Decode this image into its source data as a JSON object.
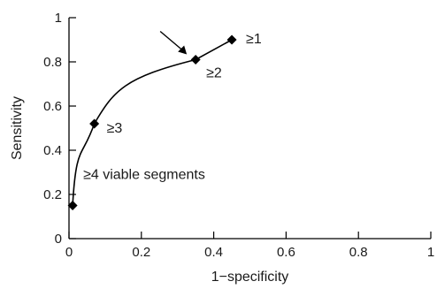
{
  "chart_data": {
    "type": "line",
    "xlabel": "1−specificity",
    "ylabel": "Sensitivity",
    "xlim": [
      0,
      1
    ],
    "ylim": [
      0,
      1
    ],
    "x_ticks": [
      0,
      0.2,
      0.4,
      0.6,
      0.8,
      1
    ],
    "x_tick_labels": [
      "0",
      "0.2",
      "0.4",
      "0.6",
      "0.8",
      "1"
    ],
    "y_ticks": [
      0,
      0.2,
      0.4,
      0.6,
      0.8,
      1
    ],
    "y_tick_labels": [
      "0",
      "0.2",
      "0.4",
      "0.6",
      "0.8",
      "1"
    ],
    "grid": false,
    "series": [
      {
        "marker": "diamond",
        "color": "#000000",
        "points": [
          {
            "x": 0.01,
            "y": 0.15,
            "label": "≥4 viable segments"
          },
          {
            "x": 0.07,
            "y": 0.52,
            "label": "≥3"
          },
          {
            "x": 0.35,
            "y": 0.81,
            "label": "≥2"
          },
          {
            "x": 0.45,
            "y": 0.9,
            "label": "≥1"
          }
        ]
      }
    ],
    "annotations": [
      {
        "type": "arrow",
        "points_to": {
          "x": 0.35,
          "y": 0.81
        },
        "color": "#000000"
      }
    ]
  }
}
